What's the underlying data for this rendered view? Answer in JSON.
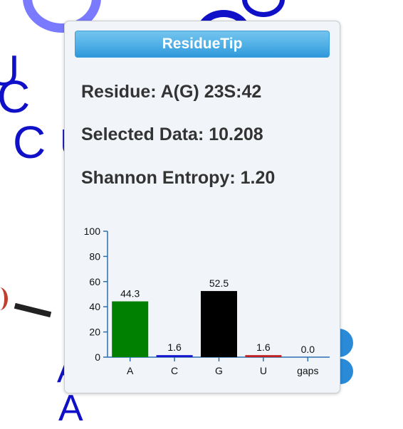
{
  "background": {
    "letters": [
      "C",
      "C",
      "U",
      "A",
      "A",
      "U"
    ]
  },
  "tooltip": {
    "title": "ResidueTip",
    "residue_line": "Residue: A(G) 23S:42",
    "selected_line": "Selected Data: 10.208",
    "entropy_line": "Shannon Entropy: 1.20",
    "colors": {
      "header": "#4fafe6"
    }
  },
  "chart_data": {
    "type": "bar",
    "categories": [
      "A",
      "C",
      "G",
      "U",
      "gaps"
    ],
    "values": [
      44.3,
      1.6,
      52.5,
      1.6,
      0.0
    ],
    "value_labels": [
      "44.3",
      "1.6",
      "52.5",
      "1.6",
      "0.0"
    ],
    "colors": [
      "#008000",
      "#1515d0",
      "#000000",
      "#c02020",
      "#888888"
    ],
    "ylim": [
      0,
      100
    ],
    "yticks": [
      "0",
      "20",
      "40",
      "60",
      "80",
      "100"
    ],
    "title": "",
    "xlabel": "",
    "ylabel": "",
    "grid": false
  }
}
